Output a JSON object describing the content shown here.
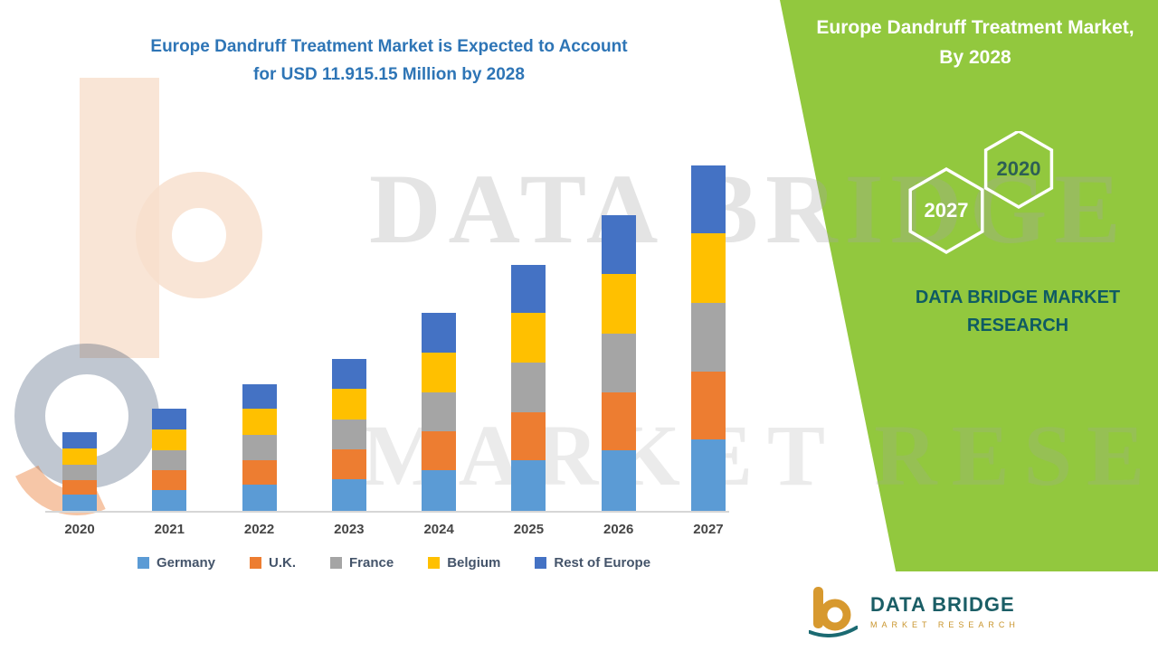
{
  "colors": {
    "accent_green": "#92C83E",
    "title_blue": "#2E75B6",
    "brand_teal": "#1B5E66",
    "brand_ochre": "#D7992F"
  },
  "title": {
    "line1": "Europe Dandruff Treatment Market is Expected to Account",
    "line2": "for USD 11.915.15 Million by 2028"
  },
  "side_panel": {
    "heading_line1": "Europe Dandruff Treatment Market,",
    "heading_line2": "By 2028",
    "hexagons": [
      {
        "label": "2027"
      },
      {
        "label": "2020"
      }
    ],
    "brand_text_line1": "DATA BRIDGE MARKET",
    "brand_text_line2": "RESEARCH"
  },
  "watermark": {
    "line1": "DATA BRIDGE",
    "line2": "MARKET RESEARCH"
  },
  "footer_logo": {
    "name": "DATA BRIDGE",
    "tagline": "MARKET RESEARCH"
  },
  "chart_data": {
    "type": "bar",
    "stacked": true,
    "title": "Europe Dandruff Treatment Market is Expected to Account for USD 11.915.15 Million by 2028",
    "categories": [
      "2020",
      "2021",
      "2022",
      "2023",
      "2024",
      "2025",
      "2026",
      "2027"
    ],
    "series": [
      {
        "name": "Germany",
        "color": "#5B9BD5",
        "values": [
          180,
          230,
          290,
          350,
          450,
          560,
          670,
          790
        ]
      },
      {
        "name": "U.K.",
        "color": "#ED7D31",
        "values": [
          165,
          220,
          275,
          330,
          430,
          535,
          645,
          755
        ]
      },
      {
        "name": "France",
        "color": "#A5A5A5",
        "values": [
          170,
          225,
          280,
          335,
          435,
          545,
          650,
          760
        ]
      },
      {
        "name": "Belgium",
        "color": "#FFC000",
        "values": [
          175,
          228,
          283,
          340,
          440,
          550,
          655,
          765
        ]
      },
      {
        "name": "Rest of Europe",
        "color": "#4472C4",
        "values": [
          180,
          227,
          272,
          325,
          435,
          530,
          650,
          750
        ]
      }
    ],
    "ylim": [
      0,
      3900
    ],
    "grid": false,
    "legend_position": "bottom",
    "note": "No y-axis shown in source; values are relative estimates derived from bar heights (arbitrary units)."
  }
}
